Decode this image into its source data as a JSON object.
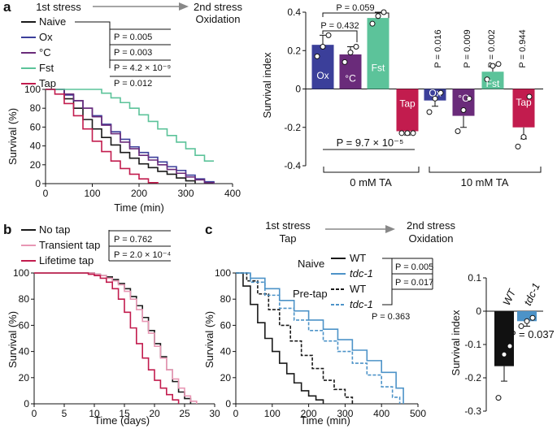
{
  "panels": {
    "a": {
      "letter": "a"
    },
    "b": {
      "letter": "b"
    },
    "c": {
      "letter": "c"
    }
  },
  "stress_arrow_a": {
    "first": "1st stress",
    "second_line1": "2nd stress",
    "second_line2": "Oxidation"
  },
  "stress_arrow_c": {
    "first_line1": "1st stress",
    "first_line2": "Tap",
    "second_line1": "2nd stress",
    "second_line2": "Oxidation"
  },
  "chart_data": [
    {
      "id": "a_survival",
      "type": "line",
      "xlabel": "Time (min)",
      "ylabel": "Survival (%)",
      "xlim": [
        0,
        400
      ],
      "ylim": [
        0,
        100
      ],
      "xticks": [
        0,
        100,
        200,
        300,
        400
      ],
      "yticks": [
        0,
        20,
        40,
        60,
        80,
        100
      ],
      "legend": [
        "Naive",
        "Ox",
        "°C",
        "Fst",
        "Tap"
      ],
      "pvalues": [
        "P = 0.005",
        "P = 0.003",
        "P = 4.2 × 10⁻⁹",
        "P = 0.012"
      ],
      "series": [
        {
          "name": "Naive",
          "color": "#1a1a1a",
          "points": [
            [
              0,
              100
            ],
            [
              20,
              100
            ],
            [
              40,
              90
            ],
            [
              60,
              80
            ],
            [
              80,
              68
            ],
            [
              100,
              58
            ],
            [
              120,
              49
            ],
            [
              140,
              41
            ],
            [
              160,
              33
            ],
            [
              180,
              27
            ],
            [
              200,
              21
            ],
            [
              220,
              17
            ],
            [
              240,
              13
            ],
            [
              260,
              10
            ],
            [
              280,
              6
            ],
            [
              300,
              3
            ],
            [
              320,
              0
            ]
          ]
        },
        {
          "name": "Ox",
          "color": "#3b3f9a",
          "points": [
            [
              0,
              100
            ],
            [
              20,
              100
            ],
            [
              40,
              94
            ],
            [
              60,
              88
            ],
            [
              80,
              80
            ],
            [
              100,
              72
            ],
            [
              120,
              63
            ],
            [
              140,
              55
            ],
            [
              160,
              47
            ],
            [
              180,
              39
            ],
            [
              200,
              33
            ],
            [
              220,
              28
            ],
            [
              240,
              23
            ],
            [
              260,
              18
            ],
            [
              280,
              14
            ],
            [
              300,
              9
            ],
            [
              320,
              5
            ],
            [
              340,
              2
            ],
            [
              360,
              0
            ]
          ]
        },
        {
          "name": "°C",
          "color": "#6a2b7a",
          "points": [
            [
              0,
              100
            ],
            [
              20,
              100
            ],
            [
              40,
              95
            ],
            [
              60,
              88
            ],
            [
              80,
              80
            ],
            [
              100,
              71
            ],
            [
              120,
              62
            ],
            [
              140,
              53
            ],
            [
              160,
              44
            ],
            [
              180,
              37
            ],
            [
              200,
              30
            ],
            [
              220,
              25
            ],
            [
              240,
              20
            ],
            [
              260,
              15
            ],
            [
              280,
              11
            ],
            [
              300,
              7
            ],
            [
              320,
              4
            ],
            [
              340,
              1
            ],
            [
              360,
              0
            ]
          ]
        },
        {
          "name": "Fst",
          "color": "#5cc39a",
          "points": [
            [
              0,
              100
            ],
            [
              100,
              100
            ],
            [
              120,
              96
            ],
            [
              140,
              91
            ],
            [
              160,
              86
            ],
            [
              180,
              80
            ],
            [
              200,
              73
            ],
            [
              220,
              66
            ],
            [
              240,
              58
            ],
            [
              260,
              51
            ],
            [
              280,
              44
            ],
            [
              300,
              37
            ],
            [
              320,
              30
            ],
            [
              340,
              24
            ],
            [
              360,
              24
            ]
          ]
        },
        {
          "name": "Tap",
          "color": "#c21c4e",
          "points": [
            [
              0,
              100
            ],
            [
              20,
              95
            ],
            [
              40,
              85
            ],
            [
              60,
              72
            ],
            [
              80,
              58
            ],
            [
              100,
              45
            ],
            [
              120,
              34
            ],
            [
              140,
              24
            ],
            [
              160,
              16
            ],
            [
              180,
              10
            ],
            [
              200,
              5
            ],
            [
              220,
              1
            ],
            [
              240,
              0
            ]
          ]
        }
      ]
    },
    {
      "id": "a_survival_index",
      "type": "bar",
      "ylabel": "Survival index",
      "ylim": [
        -0.4,
        0.4
      ],
      "yticks": [
        "0.4",
        "0.2",
        "0",
        "-0.2",
        "-0.4"
      ],
      "groups": [
        "0 mM TA",
        "10 mM TA"
      ],
      "bars": [
        {
          "label": "Ox",
          "group": "0 mM TA",
          "value": 0.23,
          "err": 0.05,
          "color": "#3b3f9a",
          "points": [
            0.17,
            0.22,
            0.28
          ]
        },
        {
          "label": "°C",
          "group": "0 mM TA",
          "value": 0.18,
          "err": 0.04,
          "color": "#6a2b7a",
          "points": [
            0.14,
            0.19,
            0.22
          ]
        },
        {
          "label": "Fst",
          "group": "0 mM TA",
          "value": 0.37,
          "err": 0.03,
          "color": "#5cc39a",
          "points": [
            0.34,
            0.38,
            0.4
          ]
        },
        {
          "label": "Tap",
          "group": "0 mM TA",
          "value": -0.22,
          "err": 0.02,
          "color": "#c21c4e",
          "points": [
            -0.23,
            -0.23,
            -0.23
          ]
        },
        {
          "label": "Ox",
          "group": "10 mM TA",
          "value": -0.06,
          "err": 0.03,
          "color": "#3b3f9a",
          "points": [
            -0.12,
            -0.05,
            -0.02
          ]
        },
        {
          "label": "°C",
          "group": "10 mM TA",
          "value": -0.14,
          "err": 0.06,
          "color": "#6a2b7a",
          "points": [
            -0.22,
            -0.11,
            -0.05
          ]
        },
        {
          "label": "Fst",
          "group": "10 mM TA",
          "value": 0.09,
          "err": 0.03,
          "color": "#5cc39a",
          "points": [
            0.05,
            0.12,
            0.13
          ]
        },
        {
          "label": "Tap",
          "group": "10 mM TA",
          "value": -0.2,
          "err": 0.06,
          "color": "#c21c4e",
          "points": [
            -0.3,
            -0.25,
            -0.04
          ]
        }
      ],
      "pvalues_top": [
        "P = 0.059",
        "P = 0.432"
      ],
      "pvalue_tap": "P = 9.7 × 10⁻⁵",
      "pvalues_vertical": [
        "P = 0.016",
        "P = 0.009",
        "P = 0.002",
        "P = 0.944"
      ]
    },
    {
      "id": "b_survival",
      "type": "line",
      "xlabel": "Time (days)",
      "ylabel": "Survival (%)",
      "xlim": [
        0,
        30
      ],
      "ylim": [
        0,
        100
      ],
      "xticks": [
        0,
        5,
        10,
        15,
        20,
        25,
        30
      ],
      "yticks": [
        0,
        20,
        40,
        60,
        80,
        100
      ],
      "legend": [
        "No tap",
        "Transient tap",
        "Lifetime tap"
      ],
      "pvalues": [
        "P = 0.762",
        "P = 2.0 × 10⁻⁴"
      ],
      "series": [
        {
          "name": "No tap",
          "color": "#1a1a1a",
          "points": [
            [
              0,
              100
            ],
            [
              9,
              100
            ],
            [
              10,
              99
            ],
            [
              11,
              98
            ],
            [
              12,
              97
            ],
            [
              13,
              95
            ],
            [
              14,
              92
            ],
            [
              15,
              88
            ],
            [
              16,
              82
            ],
            [
              17,
              75
            ],
            [
              18,
              66
            ],
            [
              19,
              56
            ],
            [
              20,
              46
            ],
            [
              21,
              36
            ],
            [
              22,
              26
            ],
            [
              23,
              17
            ],
            [
              24,
              9
            ],
            [
              25,
              4
            ],
            [
              26,
              0
            ]
          ]
        },
        {
          "name": "Transient tap",
          "color": "#e897b4",
          "points": [
            [
              0,
              100
            ],
            [
              9,
              100
            ],
            [
              10,
              99
            ],
            [
              11,
              98
            ],
            [
              12,
              96
            ],
            [
              13,
              94
            ],
            [
              14,
              91
            ],
            [
              15,
              86
            ],
            [
              16,
              80
            ],
            [
              17,
              72
            ],
            [
              18,
              63
            ],
            [
              19,
              54
            ],
            [
              20,
              44
            ],
            [
              21,
              35
            ],
            [
              22,
              26
            ],
            [
              23,
              19
            ],
            [
              24,
              12
            ],
            [
              25,
              6
            ],
            [
              26,
              2
            ],
            [
              27,
              0
            ]
          ]
        },
        {
          "name": "Lifetime tap",
          "color": "#c21c4e",
          "points": [
            [
              0,
              100
            ],
            [
              8,
              100
            ],
            [
              9,
              99
            ],
            [
              10,
              98
            ],
            [
              11,
              96
            ],
            [
              12,
              93
            ],
            [
              13,
              88
            ],
            [
              14,
              80
            ],
            [
              15,
              70
            ],
            [
              16,
              58
            ],
            [
              17,
              46
            ],
            [
              18,
              35
            ],
            [
              19,
              26
            ],
            [
              20,
              18
            ],
            [
              21,
              12
            ],
            [
              22,
              7
            ],
            [
              23,
              3
            ],
            [
              24,
              0
            ]
          ]
        }
      ]
    },
    {
      "id": "c_survival",
      "type": "line",
      "xlabel": "Time (min)",
      "ylabel": "Survival (%)",
      "xlim": [
        0,
        500
      ],
      "ylim": [
        0,
        100
      ],
      "xticks": [
        0,
        100,
        200,
        300,
        400,
        500
      ],
      "yticks": [
        0,
        20,
        40,
        60,
        80,
        100
      ],
      "legend_groups": [
        "Naive",
        "Pre-tap"
      ],
      "legend": [
        "WT",
        "tdc-1",
        "WT",
        "tdc-1"
      ],
      "pvalues": [
        "P = 0.005",
        "P = 0.017",
        "P = 0.363"
      ],
      "series": [
        {
          "name": "Naive WT",
          "color": "#1a1a1a",
          "dash": "",
          "points": [
            [
              0,
              100
            ],
            [
              20,
              90
            ],
            [
              40,
              76
            ],
            [
              60,
              62
            ],
            [
              80,
              50
            ],
            [
              100,
              40
            ],
            [
              120,
              31
            ],
            [
              140,
              23
            ],
            [
              160,
              16
            ],
            [
              180,
              10
            ],
            [
              200,
              6
            ],
            [
              220,
              3
            ],
            [
              240,
              0
            ]
          ]
        },
        {
          "name": "Naive tdc-1",
          "color": "#4d93c8",
          "dash": "",
          "points": [
            [
              0,
              100
            ],
            [
              40,
              96
            ],
            [
              80,
              88
            ],
            [
              120,
              79
            ],
            [
              160,
              71
            ],
            [
              200,
              64
            ],
            [
              240,
              57
            ],
            [
              280,
              49
            ],
            [
              320,
              41
            ],
            [
              360,
              33
            ],
            [
              400,
              24
            ],
            [
              440,
              12
            ],
            [
              460,
              0
            ]
          ]
        },
        {
          "name": "Pre-tap WT",
          "color": "#1a1a1a",
          "dash": "4,2",
          "points": [
            [
              0,
              100
            ],
            [
              30,
              94
            ],
            [
              60,
              84
            ],
            [
              90,
              72
            ],
            [
              120,
              60
            ],
            [
              150,
              48
            ],
            [
              180,
              37
            ],
            [
              210,
              27
            ],
            [
              240,
              18
            ],
            [
              270,
              11
            ],
            [
              300,
              5
            ],
            [
              320,
              0
            ]
          ]
        },
        {
          "name": "Pre-tap tdc-1",
          "color": "#4d93c8",
          "dash": "4,2",
          "points": [
            [
              0,
              100
            ],
            [
              40,
              93
            ],
            [
              80,
              83
            ],
            [
              120,
              73
            ],
            [
              160,
              64
            ],
            [
              200,
              56
            ],
            [
              240,
              48
            ],
            [
              280,
              40
            ],
            [
              320,
              31
            ],
            [
              360,
              22
            ],
            [
              400,
              13
            ],
            [
              430,
              5
            ],
            [
              450,
              0
            ]
          ]
        }
      ]
    },
    {
      "id": "c_survival_index",
      "type": "bar",
      "ylabel": "Survival index",
      "ylim": [
        -0.3,
        0.1
      ],
      "yticks": [
        "0.1",
        "0",
        "-0.1",
        "-0.2",
        "-0.3"
      ],
      "bars": [
        {
          "label": "WT",
          "value": -0.165,
          "err": 0.045,
          "color": "#111111",
          "points": [
            -0.26,
            -0.13,
            -0.105
          ]
        },
        {
          "label": "tdc-1",
          "value": -0.03,
          "err": 0.015,
          "color": "#4d93c8",
          "points": [
            -0.045,
            -0.03,
            -0.02
          ]
        }
      ],
      "pvalue": "P = 0.037"
    }
  ]
}
